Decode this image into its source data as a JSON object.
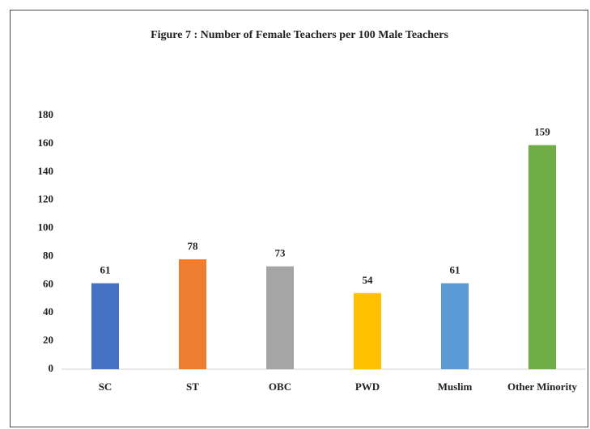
{
  "chart_data": {
    "type": "bar",
    "title": "Figure 7 : Number of Female Teachers per 100 Male Teachers",
    "categories": [
      "SC",
      "ST",
      "OBC",
      "PWD",
      "Muslim",
      "Other Minority"
    ],
    "values": [
      61,
      78,
      73,
      54,
      61,
      159
    ],
    "colors": [
      "#4472c4",
      "#ed7d31",
      "#a5a5a5",
      "#ffc000",
      "#5b9bd5",
      "#70ad47"
    ],
    "ylim": [
      0,
      180
    ],
    "yticks": [
      0,
      20,
      40,
      60,
      80,
      100,
      120,
      140,
      160,
      180
    ],
    "grid": false
  }
}
